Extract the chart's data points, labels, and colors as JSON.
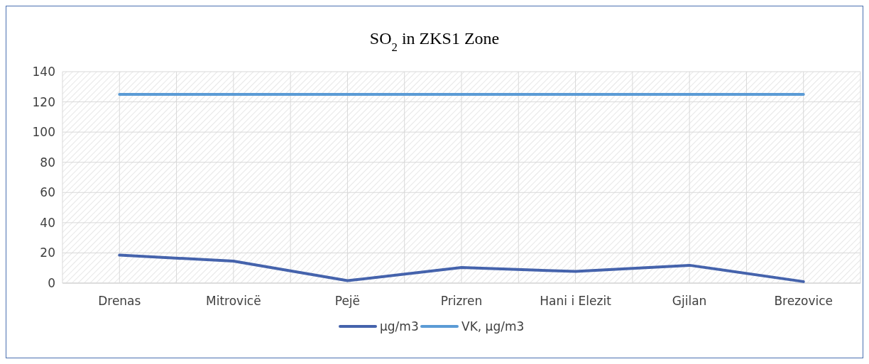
{
  "chart_data": {
    "type": "line",
    "title": "SO$_{2}$ in ZKS1 Zone",
    "categories": [
      "Drenas",
      "Mitrovicë",
      "Pejë",
      "Prizren",
      "Hani i Elezit",
      "Gjilan",
      "Brezovice"
    ],
    "series": [
      {
        "name": "µg/m3",
        "color": "#4563ac",
        "values": [
          18.5,
          14.6,
          1.6,
          10.3,
          7.7,
          11.8,
          1
        ]
      },
      {
        "name": "VK, µg/m3",
        "color": "#5b9bd5",
        "values": [
          125,
          125,
          125,
          125,
          125,
          125,
          125
        ]
      }
    ],
    "ylim": [
      0,
      140
    ],
    "yticks": [
      0,
      20,
      40,
      60,
      80,
      100,
      120,
      140
    ],
    "grid": true,
    "legend": "bottom",
    "marker": "none",
    "line_style": "solid"
  }
}
